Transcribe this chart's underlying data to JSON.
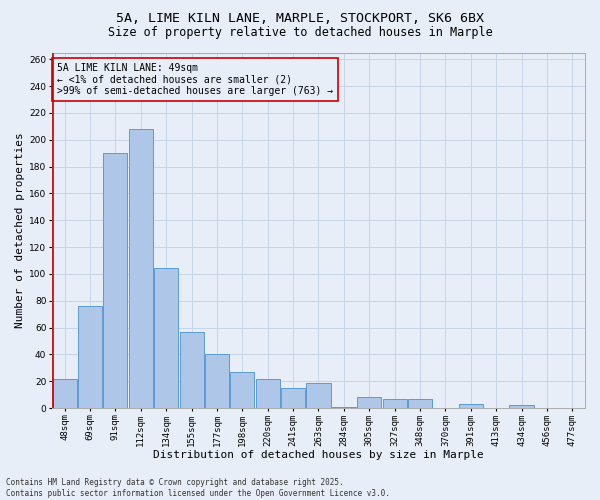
{
  "title_line1": "5A, LIME KILN LANE, MARPLE, STOCKPORT, SK6 6BX",
  "title_line2": "Size of property relative to detached houses in Marple",
  "xlabel": "Distribution of detached houses by size in Marple",
  "ylabel": "Number of detached properties",
  "categories": [
    "48sqm",
    "69sqm",
    "91sqm",
    "112sqm",
    "134sqm",
    "155sqm",
    "177sqm",
    "198sqm",
    "220sqm",
    "241sqm",
    "263sqm",
    "284sqm",
    "305sqm",
    "327sqm",
    "348sqm",
    "370sqm",
    "391sqm",
    "413sqm",
    "434sqm",
    "456sqm",
    "477sqm"
  ],
  "values": [
    22,
    76,
    190,
    208,
    104,
    57,
    40,
    27,
    22,
    15,
    19,
    1,
    8,
    7,
    7,
    0,
    3,
    0,
    2,
    0,
    0
  ],
  "bar_color": "#aec6e8",
  "bar_edge_color": "#5b9bd5",
  "grid_color": "#c8d4e8",
  "bg_color": "#e8eef8",
  "annotation_box_color": "#cc0000",
  "annotation_text": "5A LIME KILN LANE: 49sqm\n← <1% of detached houses are smaller (2)\n>99% of semi-detached houses are larger (763) →",
  "vline_x_index": 0,
  "ylim": [
    0,
    265
  ],
  "yticks": [
    0,
    20,
    40,
    60,
    80,
    100,
    120,
    140,
    160,
    180,
    200,
    220,
    240,
    260
  ],
  "footer": "Contains HM Land Registry data © Crown copyright and database right 2025.\nContains public sector information licensed under the Open Government Licence v3.0.",
  "title_fontsize": 9.5,
  "subtitle_fontsize": 8.5,
  "label_fontsize": 8,
  "tick_fontsize": 6.5,
  "annotation_fontsize": 7,
  "footer_fontsize": 5.5
}
